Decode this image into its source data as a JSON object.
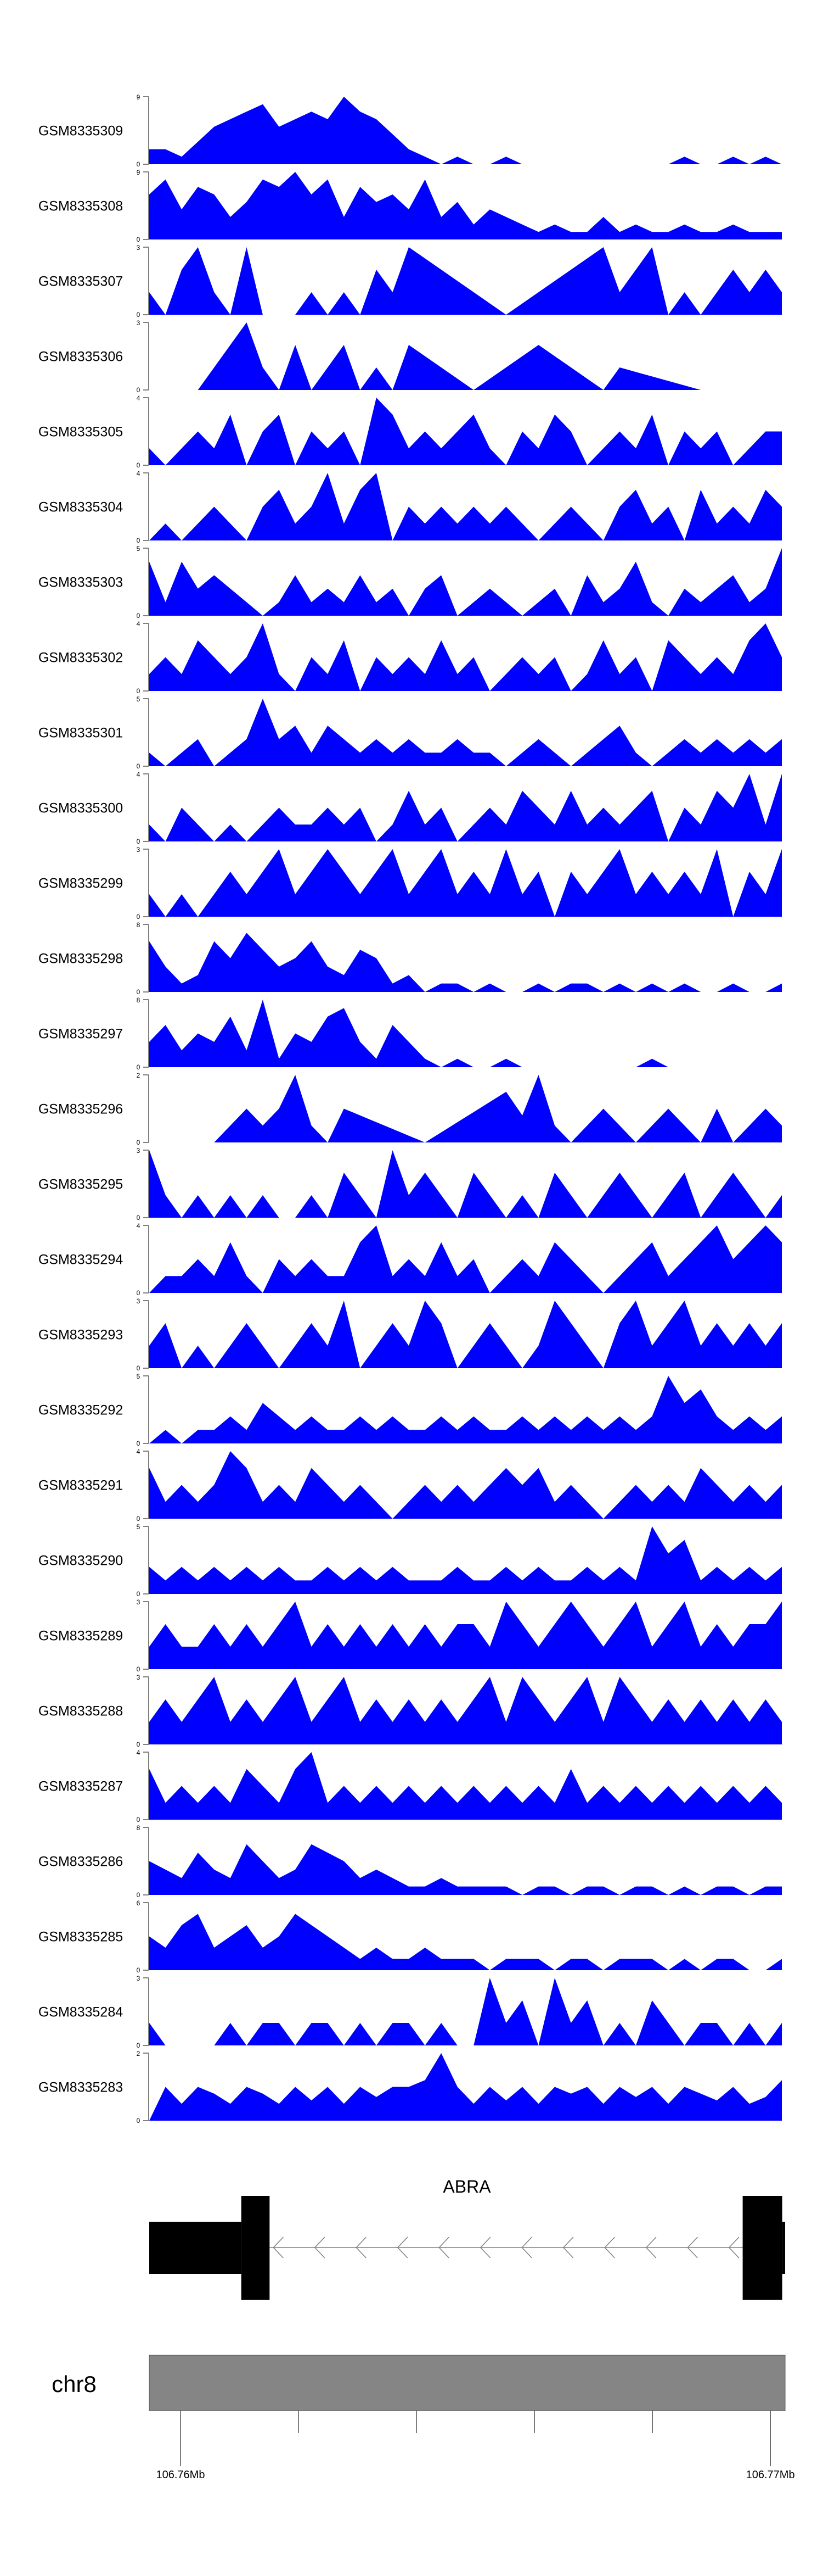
{
  "chart_data": {
    "type": "area",
    "fill_color": "#0000FF",
    "x_range_mb": [
      106.75947,
      106.77025
    ],
    "tracks": [
      {
        "name": "GSM8335309",
        "ylim": [
          0,
          9
        ],
        "values": [
          2,
          2,
          1,
          3,
          5,
          6,
          7,
          8,
          5,
          6,
          7,
          6,
          9,
          7,
          6,
          4,
          2,
          1,
          0,
          1,
          0,
          0,
          1,
          0,
          0,
          0,
          0,
          0,
          0,
          0,
          0,
          0,
          0,
          1,
          0,
          0,
          1,
          0,
          1,
          0
        ]
      },
      {
        "name": "GSM8335308",
        "ylim": [
          0,
          9
        ],
        "values": [
          6,
          8,
          4,
          7,
          6,
          3,
          5,
          8,
          7,
          9,
          6,
          8,
          3,
          7,
          5,
          6,
          4,
          8,
          3,
          5,
          2,
          4,
          3,
          2,
          1,
          2,
          1,
          1,
          3,
          1,
          2,
          1,
          1,
          2,
          1,
          1,
          2,
          1,
          1,
          1
        ]
      },
      {
        "name": "GSM8335307",
        "ylim": [
          0,
          3
        ],
        "values": [
          1,
          0,
          2,
          3,
          1,
          0,
          3,
          0,
          0,
          0,
          1,
          0,
          1,
          0,
          2,
          1,
          3,
          2.5,
          2,
          1.5,
          1,
          0.5,
          0,
          0.5,
          1,
          1.5,
          2,
          2.5,
          3,
          1,
          2,
          3,
          0,
          1,
          0,
          1,
          2,
          1,
          2,
          1
        ]
      },
      {
        "name": "GSM8335306",
        "ylim": [
          0,
          3
        ],
        "values": [
          0,
          0,
          0,
          0,
          1,
          2,
          3,
          1,
          0,
          2,
          0,
          1,
          2,
          0,
          1,
          0,
          2,
          1.5,
          1,
          0.5,
          0,
          0.5,
          1,
          1.5,
          2,
          1.5,
          1,
          0.5,
          0,
          1,
          0.8,
          0.6,
          0.4,
          0.2,
          0,
          0,
          0,
          0,
          0,
          0
        ]
      },
      {
        "name": "GSM8335305",
        "ylim": [
          0,
          4
        ],
        "values": [
          1,
          0,
          1,
          2,
          1,
          3,
          0,
          2,
          3,
          0,
          2,
          1,
          2,
          0,
          4,
          3,
          1,
          2,
          1,
          2,
          3,
          1,
          0,
          2,
          1,
          3,
          2,
          0,
          1,
          2,
          1,
          3,
          0,
          2,
          1,
          2,
          0,
          1,
          2,
          2
        ]
      },
      {
        "name": "GSM8335304",
        "ylim": [
          0,
          4
        ],
        "values": [
          0,
          1,
          0,
          1,
          2,
          1,
          0,
          2,
          3,
          1,
          2,
          4,
          1,
          3,
          4,
          0,
          2,
          1,
          2,
          1,
          2,
          1,
          2,
          1,
          0,
          1,
          2,
          1,
          0,
          2,
          3,
          1,
          2,
          0,
          3,
          1,
          2,
          1,
          3,
          2
        ]
      },
      {
        "name": "GSM8335303",
        "ylim": [
          0,
          5
        ],
        "values": [
          4,
          1,
          4,
          2,
          3,
          2,
          1,
          0,
          1,
          3,
          1,
          2,
          1,
          3,
          1,
          2,
          0,
          2,
          3,
          0,
          1,
          2,
          1,
          0,
          1,
          2,
          0,
          3,
          1,
          2,
          4,
          1,
          0,
          2,
          1,
          2,
          3,
          1,
          2,
          5
        ]
      },
      {
        "name": "GSM8335302",
        "ylim": [
          0,
          4
        ],
        "values": [
          1,
          2,
          1,
          3,
          2,
          1,
          2,
          4,
          1,
          0,
          2,
          1,
          3,
          0,
          2,
          1,
          2,
          1,
          3,
          1,
          2,
          0,
          1,
          2,
          1,
          2,
          0,
          1,
          3,
          1,
          2,
          0,
          3,
          2,
          1,
          2,
          1,
          3,
          4,
          2
        ]
      },
      {
        "name": "GSM8335301",
        "ylim": [
          0,
          5
        ],
        "values": [
          1,
          0,
          1,
          2,
          0,
          1,
          2,
          5,
          2,
          3,
          1,
          3,
          2,
          1,
          2,
          1,
          2,
          1,
          1,
          2,
          1,
          1,
          0,
          1,
          2,
          1,
          0,
          1,
          2,
          3,
          1,
          0,
          1,
          2,
          1,
          2,
          1,
          2,
          1,
          2
        ]
      },
      {
        "name": "GSM8335300",
        "ylim": [
          0,
          4
        ],
        "values": [
          1,
          0,
          2,
          1,
          0,
          1,
          0,
          1,
          2,
          1,
          1,
          2,
          1,
          2,
          0,
          1,
          3,
          1,
          2,
          0,
          1,
          2,
          1,
          3,
          2,
          1,
          3,
          1,
          2,
          1,
          2,
          3,
          0,
          2,
          1,
          3,
          2,
          4,
          1,
          4
        ]
      },
      {
        "name": "GSM8335299",
        "ylim": [
          0,
          3
        ],
        "values": [
          1,
          0,
          1,
          0,
          1,
          2,
          1,
          2,
          3,
          1,
          2,
          3,
          2,
          1,
          2,
          3,
          1,
          2,
          3,
          1,
          2,
          1,
          3,
          1,
          2,
          0,
          2,
          1,
          2,
          3,
          1,
          2,
          1,
          2,
          1,
          3,
          0,
          2,
          1,
          3
        ]
      },
      {
        "name": "GSM8335298",
        "ylim": [
          0,
          8
        ],
        "values": [
          6,
          3,
          1,
          2,
          6,
          4,
          7,
          5,
          3,
          4,
          6,
          3,
          2,
          5,
          4,
          1,
          2,
          0,
          1,
          1,
          0,
          1,
          0,
          0,
          1,
          0,
          1,
          1,
          0,
          1,
          0,
          1,
          0,
          1,
          0,
          0,
          1,
          0,
          0,
          1
        ]
      },
      {
        "name": "GSM8335297",
        "ylim": [
          0,
          8
        ],
        "values": [
          3,
          5,
          2,
          4,
          3,
          6,
          2,
          8,
          1,
          4,
          3,
          6,
          7,
          3,
          1,
          5,
          3,
          1,
          0,
          1,
          0,
          0,
          1,
          0,
          0,
          0,
          0,
          0,
          0,
          0,
          0,
          1,
          0,
          0,
          0,
          0,
          0,
          0,
          0,
          0
        ]
      },
      {
        "name": "GSM8335296",
        "ylim": [
          0,
          2
        ],
        "values": [
          0,
          0,
          0,
          0,
          0,
          0.5,
          1,
          0.5,
          1,
          2,
          0.5,
          0,
          1,
          0.8,
          0.6,
          0.4,
          0.2,
          0,
          0.3,
          0.6,
          0.9,
          1.2,
          1.5,
          0.8,
          2,
          0.5,
          0,
          0.5,
          1,
          0.5,
          0,
          0.5,
          1,
          0.5,
          0,
          1,
          0,
          0.5,
          1,
          0.5
        ]
      },
      {
        "name": "GSM8335295",
        "ylim": [
          0,
          3
        ],
        "values": [
          3,
          1,
          0,
          1,
          0,
          1,
          0,
          1,
          0,
          0,
          1,
          0,
          2,
          1,
          0,
          3,
          1,
          2,
          1,
          0,
          2,
          1,
          0,
          1,
          0,
          2,
          1,
          0,
          1,
          2,
          1,
          0,
          1,
          2,
          0,
          1,
          2,
          1,
          0,
          1
        ]
      },
      {
        "name": "GSM8335294",
        "ylim": [
          0,
          4
        ],
        "values": [
          0,
          1,
          1,
          2,
          1,
          3,
          1,
          0,
          2,
          1,
          2,
          1,
          1,
          3,
          4,
          1,
          2,
          1,
          3,
          1,
          2,
          0,
          1,
          2,
          1,
          3,
          2,
          1,
          0,
          1,
          2,
          3,
          1,
          2,
          3,
          4,
          2,
          3,
          4,
          3
        ]
      },
      {
        "name": "GSM8335293",
        "ylim": [
          0,
          3
        ],
        "values": [
          1,
          2,
          0,
          1,
          0,
          1,
          2,
          1,
          0,
          1,
          2,
          1,
          3,
          0,
          1,
          2,
          1,
          3,
          2,
          0,
          1,
          2,
          1,
          0,
          1,
          3,
          2,
          1,
          0,
          2,
          3,
          1,
          2,
          3,
          1,
          2,
          1,
          2,
          1,
          2
        ]
      },
      {
        "name": "GSM8335292",
        "ylim": [
          0,
          5
        ],
        "values": [
          0,
          1,
          0,
          1,
          1,
          2,
          1,
          3,
          2,
          1,
          2,
          1,
          1,
          2,
          1,
          2,
          1,
          1,
          2,
          1,
          2,
          1,
          1,
          2,
          1,
          2,
          1,
          2,
          1,
          2,
          1,
          2,
          5,
          3,
          4,
          2,
          1,
          2,
          1,
          2
        ]
      },
      {
        "name": "GSM8335291",
        "ylim": [
          0,
          4
        ],
        "values": [
          3,
          1,
          2,
          1,
          2,
          4,
          3,
          1,
          2,
          1,
          3,
          2,
          1,
          2,
          1,
          0,
          1,
          2,
          1,
          2,
          1,
          2,
          3,
          2,
          3,
          1,
          2,
          1,
          0,
          1,
          2,
          1,
          2,
          1,
          3,
          2,
          1,
          2,
          1,
          2
        ]
      },
      {
        "name": "GSM8335290",
        "ylim": [
          0,
          5
        ],
        "values": [
          2,
          1,
          2,
          1,
          2,
          1,
          2,
          1,
          2,
          1,
          1,
          2,
          1,
          2,
          1,
          2,
          1,
          1,
          1,
          2,
          1,
          1,
          2,
          1,
          2,
          1,
          1,
          2,
          1,
          2,
          1,
          5,
          3,
          4,
          1,
          2,
          1,
          2,
          1,
          2
        ]
      },
      {
        "name": "GSM8335289",
        "ylim": [
          0,
          3
        ],
        "values": [
          1,
          2,
          1,
          1,
          2,
          1,
          2,
          1,
          2,
          3,
          1,
          2,
          1,
          2,
          1,
          2,
          1,
          2,
          1,
          2,
          2,
          1,
          3,
          2,
          1,
          2,
          3,
          2,
          1,
          2,
          3,
          1,
          2,
          3,
          1,
          2,
          1,
          2,
          2,
          3
        ]
      },
      {
        "name": "GSM8335288",
        "ylim": [
          0,
          3
        ],
        "values": [
          1,
          2,
          1,
          2,
          3,
          1,
          2,
          1,
          2,
          3,
          1,
          2,
          3,
          1,
          2,
          1,
          2,
          1,
          2,
          1,
          2,
          3,
          1,
          3,
          2,
          1,
          2,
          3,
          1,
          3,
          2,
          1,
          2,
          1,
          2,
          1,
          2,
          1,
          2,
          1
        ]
      },
      {
        "name": "GSM8335287",
        "ylim": [
          0,
          4
        ],
        "values": [
          3,
          1,
          2,
          1,
          2,
          1,
          3,
          2,
          1,
          3,
          4,
          1,
          2,
          1,
          2,
          1,
          2,
          1,
          2,
          1,
          2,
          1,
          2,
          1,
          2,
          1,
          3,
          1,
          2,
          1,
          2,
          1,
          2,
          1,
          2,
          1,
          2,
          1,
          2,
          1
        ]
      },
      {
        "name": "GSM8335286",
        "ylim": [
          0,
          8
        ],
        "values": [
          4,
          3,
          2,
          5,
          3,
          2,
          6,
          4,
          2,
          3,
          6,
          5,
          4,
          2,
          3,
          2,
          1,
          1,
          2,
          1,
          1,
          1,
          1,
          0,
          1,
          1,
          0,
          1,
          1,
          0,
          1,
          1,
          0,
          1,
          0,
          1,
          1,
          0,
          1,
          1
        ]
      },
      {
        "name": "GSM8335285",
        "ylim": [
          0,
          6
        ],
        "values": [
          3,
          2,
          4,
          5,
          2,
          3,
          4,
          2,
          3,
          5,
          4,
          3,
          2,
          1,
          2,
          1,
          1,
          2,
          1,
          1,
          1,
          0,
          1,
          1,
          1,
          0,
          1,
          1,
          0,
          1,
          1,
          1,
          0,
          1,
          0,
          1,
          1,
          0,
          0,
          1
        ]
      },
      {
        "name": "GSM8335284",
        "ylim": [
          0,
          3
        ],
        "values": [
          1,
          0,
          0,
          0,
          0,
          1,
          0,
          1,
          1,
          0,
          1,
          1,
          0,
          1,
          0,
          1,
          1,
          0,
          1,
          0,
          0,
          3,
          1,
          2,
          0,
          3,
          1,
          2,
          0,
          1,
          0,
          2,
          1,
          0,
          1,
          1,
          0,
          1,
          0,
          1
        ]
      },
      {
        "name": "GSM8335283",
        "ylim": [
          0,
          2
        ],
        "values": [
          0,
          1,
          0.5,
          1,
          0.8,
          0.5,
          1,
          0.8,
          0.5,
          1,
          0.6,
          1,
          0.5,
          1,
          0.7,
          1,
          1,
          1.2,
          2,
          1,
          0.5,
          1,
          0.6,
          1,
          0.5,
          1,
          0.8,
          1,
          0.5,
          1,
          0.7,
          1,
          0.5,
          1,
          0.8,
          0.6,
          1,
          0.5,
          0.7,
          1.2
        ]
      }
    ],
    "gene": {
      "name": "ABRA",
      "strand": "-",
      "utr": [
        [
          106.75947,
          106.76103
        ],
        [
          106.7702,
          106.77025
        ]
      ],
      "cds": [
        [
          106.76103,
          106.76151
        ],
        [
          106.76953,
          106.7702
        ]
      ],
      "intron": [
        106.76151,
        106.76953
      ]
    },
    "ideogram": {
      "chromosome": "chr8",
      "color": "#858585",
      "ticks_mb": [
        106.76,
        106.762,
        106.764,
        106.766,
        106.768,
        106.77
      ],
      "tick_labels": [
        {
          "value": 106.76,
          "label": "106.76Mb"
        },
        {
          "value": 106.77,
          "label": "106.77Mb"
        }
      ]
    }
  }
}
